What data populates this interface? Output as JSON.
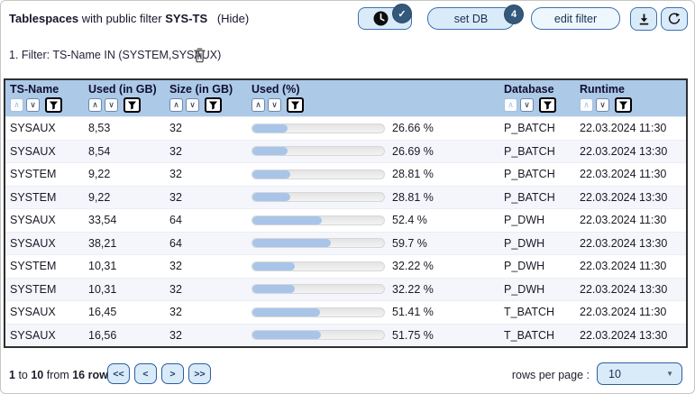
{
  "header": {
    "title": "Tablespaces",
    "subtitle": "with public filter",
    "public_filter_name": "SYS-TS",
    "hide_label": "(Hide)"
  },
  "toolbar": {
    "clock_badge_check": "✓",
    "set_db_label": "set DB",
    "set_db_badge": "4",
    "edit_filter_label": "edit filter"
  },
  "filter_bar": {
    "text": "1. Filter: TS-Name IN (SYSTEM,SYSAUX)"
  },
  "table": {
    "columns": [
      {
        "label": "TS-Name",
        "up_faded": true
      },
      {
        "label": "Used (in GB)",
        "up_faded": false
      },
      {
        "label": "Size (in GB)",
        "up_faded": false
      },
      {
        "label": "Used (%)",
        "up_faded": false
      },
      {
        "label": "Database",
        "up_faded": true
      },
      {
        "label": "Runtime",
        "up_faded": true
      }
    ],
    "rows": [
      {
        "ts": "SYSAUX",
        "used": "8,53",
        "size": "32",
        "pct": 26.66,
        "pct_label": "26.66 %",
        "db": "P_BATCH",
        "runtime": "22.03.2024 11:30"
      },
      {
        "ts": "SYSAUX",
        "used": "8,54",
        "size": "32",
        "pct": 26.69,
        "pct_label": "26.69 %",
        "db": "P_BATCH",
        "runtime": "22.03.2024 13:30"
      },
      {
        "ts": "SYSTEM",
        "used": "9,22",
        "size": "32",
        "pct": 28.81,
        "pct_label": "28.81 %",
        "db": "P_BATCH",
        "runtime": "22.03.2024 11:30"
      },
      {
        "ts": "SYSTEM",
        "used": "9,22",
        "size": "32",
        "pct": 28.81,
        "pct_label": "28.81 %",
        "db": "P_BATCH",
        "runtime": "22.03.2024 13:30"
      },
      {
        "ts": "SYSAUX",
        "used": "33,54",
        "size": "64",
        "pct": 52.4,
        "pct_label": "52.4 %",
        "db": "P_DWH",
        "runtime": "22.03.2024 11:30"
      },
      {
        "ts": "SYSAUX",
        "used": "38,21",
        "size": "64",
        "pct": 59.7,
        "pct_label": "59.7 %",
        "db": "P_DWH",
        "runtime": "22.03.2024 13:30"
      },
      {
        "ts": "SYSTEM",
        "used": "10,31",
        "size": "32",
        "pct": 32.22,
        "pct_label": "32.22 %",
        "db": "P_DWH",
        "runtime": "22.03.2024 11:30"
      },
      {
        "ts": "SYSTEM",
        "used": "10,31",
        "size": "32",
        "pct": 32.22,
        "pct_label": "32.22 %",
        "db": "P_DWH",
        "runtime": "22.03.2024 13:30"
      },
      {
        "ts": "SYSAUX",
        "used": "16,45",
        "size": "32",
        "pct": 51.41,
        "pct_label": "51.41 %",
        "db": "T_BATCH",
        "runtime": "22.03.2024 11:30"
      },
      {
        "ts": "SYSAUX",
        "used": "16,56",
        "size": "32",
        "pct": 51.75,
        "pct_label": "51.75 %",
        "db": "T_BATCH",
        "runtime": "22.03.2024 13:30"
      }
    ]
  },
  "icons": {
    "sort_up": "∧",
    "sort_down": "∨",
    "caret_down": "▼"
  },
  "footer": {
    "range_start": "1",
    "to_word": "to",
    "range_end": "10",
    "from_word": "from",
    "total": "16 rows",
    "pager_first": "<<",
    "pager_prev": "<",
    "pager_next": ">",
    "pager_last": ">>",
    "rows_per_page_label": "rows per page :",
    "rows_per_page_value": "10"
  },
  "colors": {
    "accent_blue": "#2d5d9f",
    "table_header_bg": "#adc9e8",
    "button_bg": "#d9ebf9",
    "badge_bg": "#33587c",
    "bar_fill": "#a8c5e9",
    "row_alt_bg": "#f4f6fb"
  }
}
